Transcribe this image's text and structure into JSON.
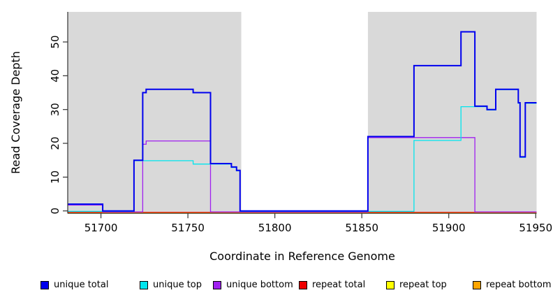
{
  "chart_data": {
    "type": "line",
    "subtype": "step-coverage",
    "title": "",
    "xlabel": "Coordinate in Reference Genome",
    "ylabel": "Read Coverage Depth",
    "x_ticks": [
      51700,
      51750,
      51800,
      51850,
      51900,
      51950
    ],
    "y_ticks": [
      0,
      10,
      20,
      30,
      40,
      50
    ],
    "xlim": [
      51680.9,
      51950.5
    ],
    "ylim": [
      0,
      58.9
    ],
    "grid": false,
    "background_color": "#FFFFFF",
    "shaded_region_color": "#D9D9D9",
    "shaded_regions": [
      {
        "name": "left-gray-region",
        "x0": 51680.9,
        "x1": 51780.7
      },
      {
        "name": "right-gray-region",
        "x0": 51853.5,
        "x1": 51950.5
      }
    ],
    "series": [
      {
        "name": "unique total",
        "color": "#0000EE",
        "step_points": [
          [
            51680.9,
            2
          ],
          [
            51701,
            0
          ],
          [
            51719,
            15
          ],
          [
            51724,
            35
          ],
          [
            51726,
            36
          ],
          [
            51753,
            35
          ],
          [
            51763,
            14
          ],
          [
            51775,
            13
          ],
          [
            51778,
            12
          ],
          [
            51780,
            0
          ],
          [
            51853.5,
            22
          ],
          [
            51880,
            43
          ],
          [
            51907,
            53
          ],
          [
            51915,
            31
          ],
          [
            51922,
            30
          ],
          [
            51927,
            36
          ],
          [
            51940,
            32
          ],
          [
            51941,
            16
          ],
          [
            51944,
            32
          ],
          [
            51950.5,
            32
          ]
        ]
      },
      {
        "name": "unique top",
        "color": "#00E5EE",
        "step_points": [
          [
            51680.9,
            0
          ],
          [
            51719,
            15
          ],
          [
            51753,
            14
          ],
          [
            51775,
            13
          ],
          [
            51778,
            12
          ],
          [
            51780,
            0
          ],
          [
            51880,
            21
          ],
          [
            51907,
            31
          ],
          [
            51922,
            30
          ],
          [
            51927,
            36
          ],
          [
            51940,
            32
          ],
          [
            51941,
            16
          ],
          [
            51944,
            32
          ],
          [
            51950.5,
            32
          ]
        ]
      },
      {
        "name": "unique bottom",
        "color": "#A020F0",
        "step_points": [
          [
            51680.9,
            2
          ],
          [
            51701,
            0
          ],
          [
            51724,
            20
          ],
          [
            51726,
            21
          ],
          [
            51763,
            0
          ],
          [
            51853.5,
            22
          ],
          [
            51915,
            0
          ],
          [
            51950.5,
            0
          ]
        ]
      },
      {
        "name": "repeat total",
        "color": "#EE0000",
        "step_points": [
          [
            51680.9,
            0
          ],
          [
            51950.5,
            0
          ]
        ]
      },
      {
        "name": "repeat top",
        "color": "#FFFF00",
        "step_points": [
          [
            51680.9,
            0
          ],
          [
            51950.5,
            0
          ]
        ]
      },
      {
        "name": "repeat bottom",
        "color": "#FFA500",
        "step_points": [
          [
            51680.9,
            0
          ],
          [
            51950.5,
            0
          ]
        ]
      }
    ],
    "legend": [
      {
        "label": "unique total",
        "color": "#0000EE"
      },
      {
        "label": "unique top",
        "color": "#00E5EE"
      },
      {
        "label": "unique bottom",
        "color": "#A020F0"
      },
      {
        "label": "repeat total",
        "color": "#EE0000"
      },
      {
        "label": "repeat top",
        "color": "#FFFF00"
      },
      {
        "label": "repeat bottom",
        "color": "#FFA500"
      }
    ],
    "legend_position": "bottom"
  }
}
